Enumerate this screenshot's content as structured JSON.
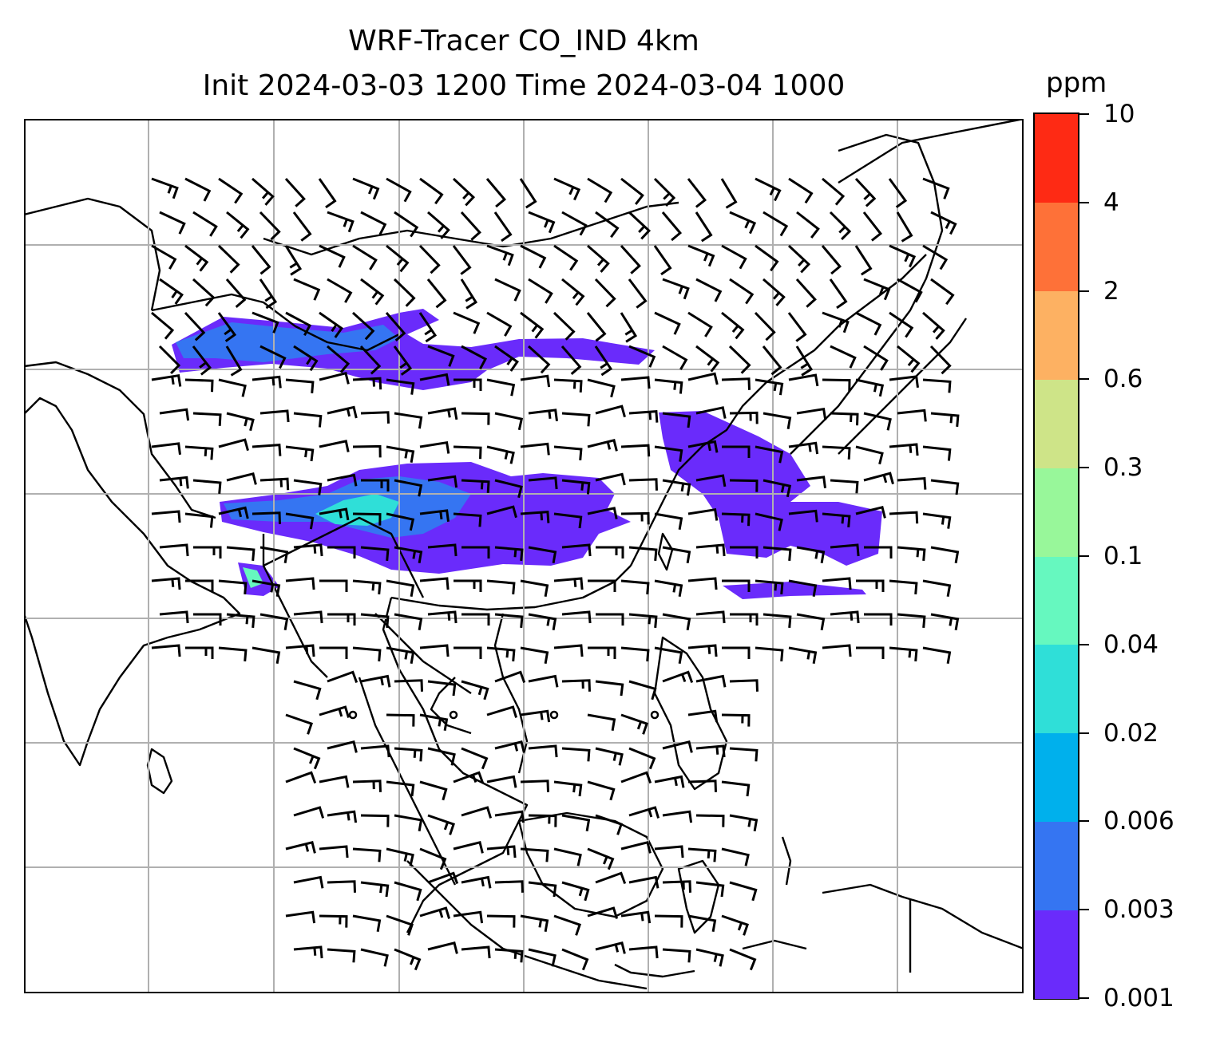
{
  "title": {
    "line1": "WRF-Tracer CO_IND 4km",
    "line2": "Init 2024-03-03 1200 Time 2024-03-04 1000"
  },
  "colorbar": {
    "unit": "ppm",
    "levels": [
      "0.001",
      "0.003",
      "0.006",
      "0.02",
      "0.04",
      "0.1",
      "0.3",
      "0.6",
      "2",
      "4",
      "10"
    ],
    "colors": [
      "#6a2bfb",
      "#3575f2",
      "#00b0ec",
      "#2fdfd8",
      "#66f8bf",
      "#98f79a",
      "#cee488",
      "#fdb162",
      "#fe7138",
      "#fe2a14"
    ]
  },
  "map": {
    "gridlines": true,
    "grid_color": "#b0b0b0",
    "coast_color": "#000000",
    "overlay": "wind barbs"
  }
}
